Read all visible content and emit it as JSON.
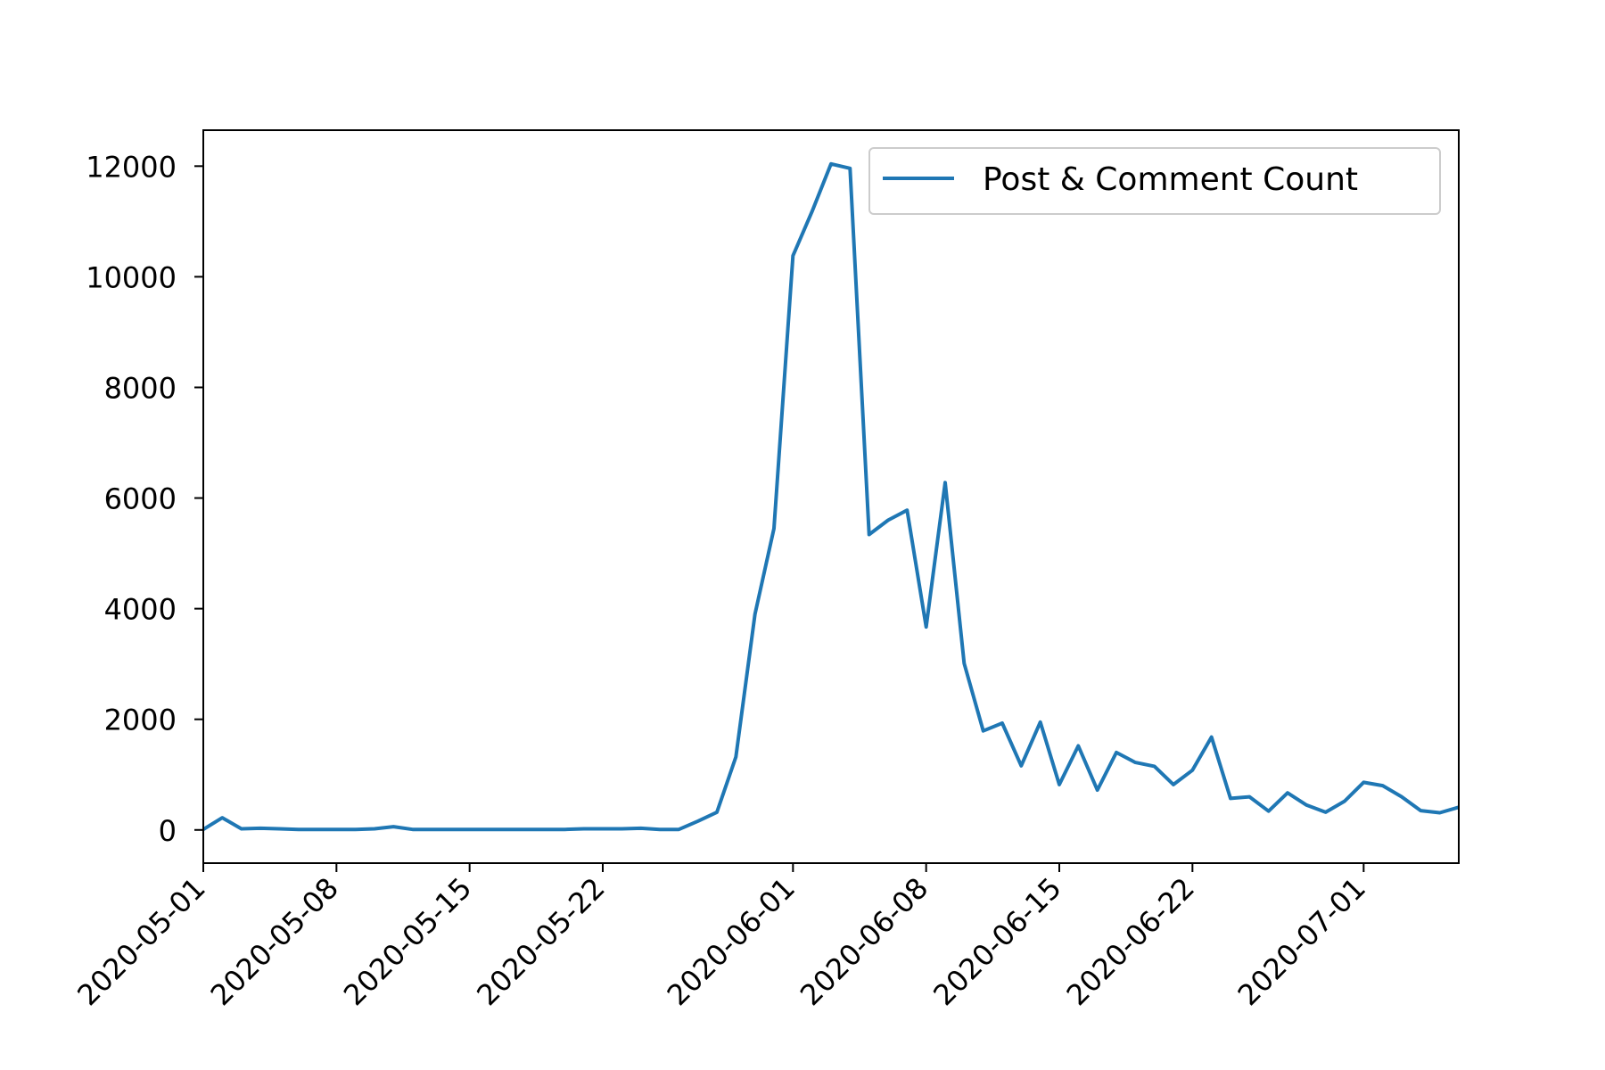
{
  "chart_data": {
    "type": "line",
    "title": "",
    "xlabel": "",
    "ylabel": "",
    "grid": false,
    "legend_position": "top-right",
    "xlim": [
      "2020-05-01",
      "2020-07-06"
    ],
    "ylim": [
      -600,
      12650
    ],
    "x_ticks": [
      "2020-05-01",
      "2020-05-08",
      "2020-05-15",
      "2020-05-22",
      "2020-06-01",
      "2020-06-08",
      "2020-06-15",
      "2020-06-22",
      "2020-07-01"
    ],
    "y_ticks": [
      0,
      2000,
      4000,
      6000,
      8000,
      10000,
      12000
    ],
    "series": [
      {
        "name": "Post & Comment Count",
        "color": "#1f77b4",
        "x": [
          "2020-05-01",
          "2020-05-02",
          "2020-05-03",
          "2020-05-04",
          "2020-05-05",
          "2020-05-06",
          "2020-05-07",
          "2020-05-08",
          "2020-05-09",
          "2020-05-10",
          "2020-05-11",
          "2020-05-12",
          "2020-05-13",
          "2020-05-14",
          "2020-05-15",
          "2020-05-16",
          "2020-05-17",
          "2020-05-18",
          "2020-05-19",
          "2020-05-20",
          "2020-05-21",
          "2020-05-22",
          "2020-05-23",
          "2020-05-24",
          "2020-05-25",
          "2020-05-26",
          "2020-05-27",
          "2020-05-28",
          "2020-05-29",
          "2020-05-30",
          "2020-05-31",
          "2020-06-01",
          "2020-06-02",
          "2020-06-03",
          "2020-06-04",
          "2020-06-05",
          "2020-06-06",
          "2020-06-07",
          "2020-06-08",
          "2020-06-09",
          "2020-06-10",
          "2020-06-11",
          "2020-06-12",
          "2020-06-13",
          "2020-06-14",
          "2020-06-15",
          "2020-06-16",
          "2020-06-17",
          "2020-06-18",
          "2020-06-19",
          "2020-06-20",
          "2020-06-21",
          "2020-06-22",
          "2020-06-23",
          "2020-06-24",
          "2020-06-25",
          "2020-06-26",
          "2020-06-27",
          "2020-06-28",
          "2020-06-29",
          "2020-06-30",
          "2020-07-01",
          "2020-07-02",
          "2020-07-03",
          "2020-07-04",
          "2020-07-05",
          "2020-07-06"
        ],
        "values": [
          10,
          220,
          20,
          30,
          20,
          10,
          10,
          10,
          10,
          20,
          60,
          10,
          10,
          10,
          10,
          10,
          10,
          10,
          10,
          10,
          20,
          20,
          20,
          30,
          10,
          10,
          160,
          320,
          1320,
          3900,
          5450,
          10380,
          11180,
          12040,
          11960,
          5340,
          5600,
          5780,
          3670,
          6280,
          3010,
          1790,
          1930,
          1160,
          1950,
          820,
          1520,
          720,
          1400,
          1220,
          1150,
          820,
          1080,
          1680,
          570,
          600,
          340,
          670,
          450,
          320,
          520,
          860,
          800,
          600,
          350,
          310,
          410
        ]
      }
    ]
  }
}
